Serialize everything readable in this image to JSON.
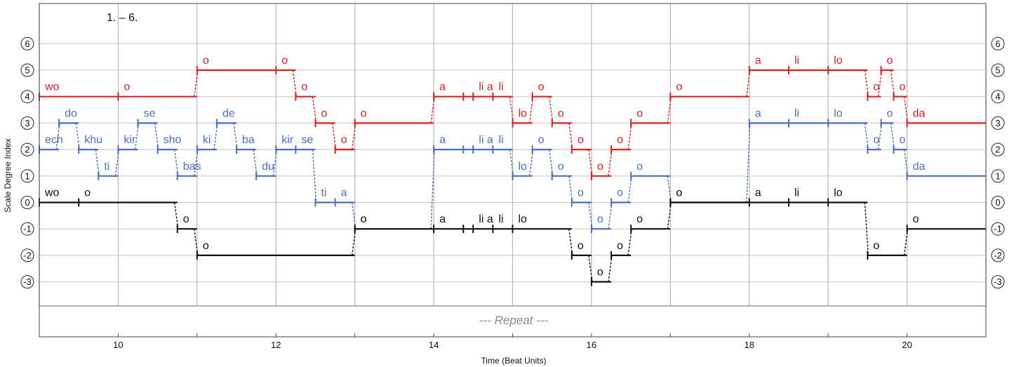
{
  "chart_data": {
    "type": "line",
    "title": "",
    "xlabel": "Time (Beat Units)",
    "ylabel": "Scale Degree Index",
    "xlim": [
      9,
      21
    ],
    "ylim": [
      -3,
      6
    ],
    "x_ticks": [
      10,
      12,
      14,
      16,
      18,
      20
    ],
    "y_ticks": [
      6,
      5,
      4,
      3,
      2,
      1,
      0,
      -1,
      -2,
      -3
    ],
    "x_gridlines": [
      9,
      10,
      11,
      12,
      13,
      14,
      15,
      16,
      17,
      18,
      19,
      20,
      21
    ],
    "section_mark": "1. – 6.",
    "repeat_label": "--- Repeat ---",
    "series": [
      {
        "color": "#e02020",
        "notes": [
          {
            "start": 9.0,
            "end": 10.0,
            "degree": 4,
            "syllable": "wo"
          },
          {
            "start": 10.0,
            "end": 11.0,
            "degree": 4,
            "syllable": "o"
          },
          {
            "start": 11.0,
            "end": 12.0,
            "degree": 5,
            "syllable": "o"
          },
          {
            "start": 12.0,
            "end": 12.25,
            "degree": 5,
            "syllable": "o"
          },
          {
            "start": 12.25,
            "end": 12.5,
            "degree": 4,
            "syllable": "o"
          },
          {
            "start": 12.5,
            "end": 12.75,
            "degree": 3,
            "syllable": "o"
          },
          {
            "start": 12.75,
            "end": 13.0,
            "degree": 2,
            "syllable": "o"
          },
          {
            "start": 13.0,
            "end": 14.0,
            "degree": 3,
            "syllable": "o"
          },
          {
            "start": 14.0,
            "end": 14.375,
            "degree": 4,
            "syllable": "a"
          },
          {
            "start": 14.375,
            "end": 14.5,
            "degree": 4,
            "syllable": ""
          },
          {
            "start": 14.5,
            "end": 14.75,
            "degree": 4,
            "syllable": "li a"
          },
          {
            "start": 14.75,
            "end": 15.0,
            "degree": 4,
            "syllable": "li"
          },
          {
            "start": 15.0,
            "end": 15.25,
            "degree": 3,
            "syllable": "lo"
          },
          {
            "start": 15.25,
            "end": 15.5,
            "degree": 4,
            "syllable": "o"
          },
          {
            "start": 15.5,
            "end": 15.75,
            "degree": 3,
            "syllable": "o"
          },
          {
            "start": 15.75,
            "end": 16.0,
            "degree": 2,
            "syllable": "o"
          },
          {
            "start": 16.0,
            "end": 16.25,
            "degree": 1,
            "syllable": "o"
          },
          {
            "start": 16.25,
            "end": 16.5,
            "degree": 2,
            "syllable": "o"
          },
          {
            "start": 16.5,
            "end": 17.0,
            "degree": 3,
            "syllable": "o"
          },
          {
            "start": 17.0,
            "end": 18.0,
            "degree": 4,
            "syllable": "o"
          },
          {
            "start": 18.0,
            "end": 18.5,
            "degree": 5,
            "syllable": "a"
          },
          {
            "start": 18.5,
            "end": 19.0,
            "degree": 5,
            "syllable": "li"
          },
          {
            "start": 19.0,
            "end": 19.5,
            "degree": 5,
            "syllable": "lo"
          },
          {
            "start": 19.5,
            "end": 19.67,
            "degree": 4,
            "syllable": "o"
          },
          {
            "start": 19.67,
            "end": 19.83,
            "degree": 5,
            "syllable": "o"
          },
          {
            "start": 19.83,
            "end": 20.0,
            "degree": 4,
            "syllable": "o"
          },
          {
            "start": 20.0,
            "end": 21.0,
            "degree": 3,
            "syllable": "da"
          }
        ]
      },
      {
        "color": "#4a6fc4",
        "notes": [
          {
            "start": 9.0,
            "end": 9.25,
            "degree": 2,
            "syllable": "ech"
          },
          {
            "start": 9.25,
            "end": 9.5,
            "degree": 3,
            "syllable": "do"
          },
          {
            "start": 9.5,
            "end": 9.75,
            "degree": 2,
            "syllable": "khu"
          },
          {
            "start": 9.75,
            "end": 10.0,
            "degree": 1,
            "syllable": "ti"
          },
          {
            "start": 10.0,
            "end": 10.25,
            "degree": 2,
            "syllable": "kir"
          },
          {
            "start": 10.25,
            "end": 10.5,
            "degree": 3,
            "syllable": "se"
          },
          {
            "start": 10.5,
            "end": 10.75,
            "degree": 2,
            "syllable": "sho"
          },
          {
            "start": 10.75,
            "end": 11.0,
            "degree": 1,
            "syllable": "bas"
          },
          {
            "start": 11.0,
            "end": 11.25,
            "degree": 2,
            "syllable": "ki"
          },
          {
            "start": 11.25,
            "end": 11.5,
            "degree": 3,
            "syllable": "de"
          },
          {
            "start": 11.5,
            "end": 11.75,
            "degree": 2,
            "syllable": "ba"
          },
          {
            "start": 11.75,
            "end": 12.0,
            "degree": 1,
            "syllable": "du"
          },
          {
            "start": 12.0,
            "end": 12.25,
            "degree": 2,
            "syllable": "kir"
          },
          {
            "start": 12.25,
            "end": 12.5,
            "degree": 2,
            "syllable": "se"
          },
          {
            "start": 12.5,
            "end": 12.75,
            "degree": 0,
            "syllable": "ti"
          },
          {
            "start": 12.75,
            "end": 13.0,
            "degree": 0,
            "syllable": "a"
          },
          {
            "start": 13.0,
            "end": 14.0,
            "degree": -1,
            "syllable": "o"
          },
          {
            "start": 14.0,
            "end": 14.375,
            "degree": 2,
            "syllable": "a"
          },
          {
            "start": 14.375,
            "end": 14.5,
            "degree": 2,
            "syllable": ""
          },
          {
            "start": 14.5,
            "end": 14.75,
            "degree": 2,
            "syllable": "li a"
          },
          {
            "start": 14.75,
            "end": 15.0,
            "degree": 2,
            "syllable": "li"
          },
          {
            "start": 15.0,
            "end": 15.25,
            "degree": 1,
            "syllable": "lo"
          },
          {
            "start": 15.25,
            "end": 15.5,
            "degree": 2,
            "syllable": "o"
          },
          {
            "start": 15.5,
            "end": 15.75,
            "degree": 1,
            "syllable": "o"
          },
          {
            "start": 15.75,
            "end": 16.0,
            "degree": 0,
            "syllable": "o"
          },
          {
            "start": 16.0,
            "end": 16.25,
            "degree": -1,
            "syllable": "o"
          },
          {
            "start": 16.25,
            "end": 16.5,
            "degree": 0,
            "syllable": "o"
          },
          {
            "start": 16.5,
            "end": 17.0,
            "degree": 1,
            "syllable": "o"
          },
          {
            "start": 17.0,
            "end": 18.0,
            "degree": 0,
            "syllable": "o"
          },
          {
            "start": 18.0,
            "end": 18.5,
            "degree": 3,
            "syllable": "a"
          },
          {
            "start": 18.5,
            "end": 19.0,
            "degree": 3,
            "syllable": "li"
          },
          {
            "start": 19.0,
            "end": 19.5,
            "degree": 3,
            "syllable": "lo"
          },
          {
            "start": 19.5,
            "end": 19.67,
            "degree": 2,
            "syllable": "o"
          },
          {
            "start": 19.67,
            "end": 19.83,
            "degree": 3,
            "syllable": "o"
          },
          {
            "start": 19.83,
            "end": 20.0,
            "degree": 2,
            "syllable": "o"
          },
          {
            "start": 20.0,
            "end": 21.0,
            "degree": 1,
            "syllable": "da"
          }
        ]
      },
      {
        "color": "#111111",
        "notes": [
          {
            "start": 9.0,
            "end": 9.5,
            "degree": 0,
            "syllable": "wo"
          },
          {
            "start": 9.5,
            "end": 10.75,
            "degree": 0,
            "syllable": "o"
          },
          {
            "start": 10.75,
            "end": 11.0,
            "degree": -1,
            "syllable": "o"
          },
          {
            "start": 11.0,
            "end": 13.0,
            "degree": -2,
            "syllable": "o"
          },
          {
            "start": 13.0,
            "end": 14.0,
            "degree": -1,
            "syllable": "o"
          },
          {
            "start": 14.0,
            "end": 14.375,
            "degree": -1,
            "syllable": "a"
          },
          {
            "start": 14.375,
            "end": 14.5,
            "degree": -1,
            "syllable": ""
          },
          {
            "start": 14.5,
            "end": 14.75,
            "degree": -1,
            "syllable": "li a"
          },
          {
            "start": 14.75,
            "end": 15.0,
            "degree": -1,
            "syllable": "li"
          },
          {
            "start": 15.0,
            "end": 15.75,
            "degree": -1,
            "syllable": "lo"
          },
          {
            "start": 15.75,
            "end": 16.0,
            "degree": -2,
            "syllable": "o"
          },
          {
            "start": 16.0,
            "end": 16.25,
            "degree": -3,
            "syllable": "o"
          },
          {
            "start": 16.25,
            "end": 16.5,
            "degree": -2,
            "syllable": "o"
          },
          {
            "start": 16.5,
            "end": 17.0,
            "degree": -1,
            "syllable": "o"
          },
          {
            "start": 17.0,
            "end": 18.0,
            "degree": 0,
            "syllable": "o"
          },
          {
            "start": 18.0,
            "end": 18.5,
            "degree": 0,
            "syllable": "a"
          },
          {
            "start": 18.5,
            "end": 19.0,
            "degree": 0,
            "syllable": "li"
          },
          {
            "start": 19.0,
            "end": 19.5,
            "degree": 0,
            "syllable": "lo"
          },
          {
            "start": 19.5,
            "end": 20.0,
            "degree": -2,
            "syllable": "o"
          },
          {
            "start": 20.0,
            "end": 21.0,
            "degree": -1,
            "syllable": "o"
          }
        ]
      }
    ]
  }
}
